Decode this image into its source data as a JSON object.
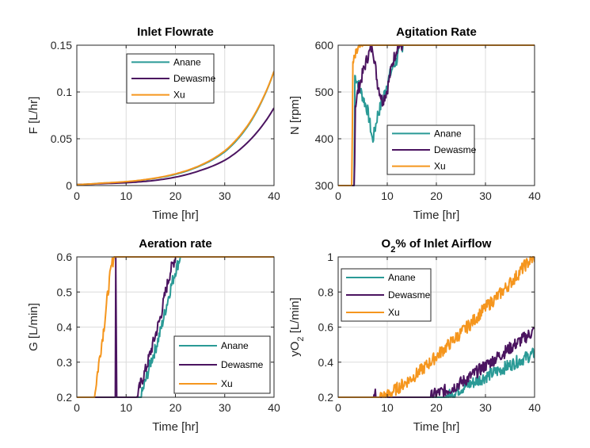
{
  "colors": {
    "Anane": "#2a9a96",
    "Dewasme": "#4b1460",
    "Xu": "#f5961e"
  },
  "chart_data": [
    {
      "type": "line",
      "title": "Inlet Flowrate",
      "title_parts": [
        "Inlet Flowrate"
      ],
      "xlabel": "Time [hr]",
      "ylabel": "F [L/hr]",
      "ylabel_parts": [
        "F [L/hr]"
      ],
      "xlim": [
        0,
        40
      ],
      "ylim": [
        0,
        0.15
      ],
      "xticks": [
        0,
        10,
        20,
        30,
        40
      ],
      "xtick_labels": [
        "0",
        "10",
        "20",
        "30",
        "40"
      ],
      "yticks": [
        0,
        0.05,
        0.1,
        0.15
      ],
      "ytick_labels": [
        "0",
        "0.05",
        "0.1",
        "0.15"
      ],
      "grid": true,
      "legend_position": "top-center",
      "series": [
        {
          "name": "Anane",
          "x": [
            0,
            5,
            10,
            15,
            20,
            25,
            30,
            35,
            40
          ],
          "y": [
            0.001,
            0.0025,
            0.004,
            0.007,
            0.012,
            0.021,
            0.036,
            0.066,
            0.122
          ]
        },
        {
          "name": "Dewasme",
          "x": [
            0,
            5,
            10,
            15,
            20,
            25,
            30,
            35,
            40
          ],
          "y": [
            0.001,
            0.002,
            0.003,
            0.005,
            0.009,
            0.016,
            0.027,
            0.048,
            0.083
          ]
        },
        {
          "name": "Xu",
          "x": [
            0,
            5,
            10,
            15,
            20,
            25,
            30,
            35,
            40
          ],
          "y": [
            0.001,
            0.0026,
            0.0042,
            0.0072,
            0.0125,
            0.0215,
            0.037,
            0.067,
            0.122
          ]
        }
      ]
    },
    {
      "type": "line",
      "title": "Agitation Rate",
      "title_parts": [
        "Agitation Rate"
      ],
      "xlabel": "Time [hr]",
      "ylabel": "N [rpm]",
      "ylabel_parts": [
        "N [rpm]"
      ],
      "xlim": [
        0,
        40
      ],
      "ylim": [
        300,
        600
      ],
      "xticks": [
        0,
        10,
        20,
        30,
        40
      ],
      "xtick_labels": [
        "0",
        "10",
        "20",
        "30",
        "40"
      ],
      "yticks": [
        300,
        400,
        500,
        600
      ],
      "ytick_labels": [
        "300",
        "400",
        "500",
        "600"
      ],
      "grid": true,
      "legend_position": "lower-right",
      "series": [
        {
          "name": "Anane",
          "x": [
            0,
            3.3,
            3.4,
            4,
            5,
            6,
            6.5,
            7,
            7.5,
            8,
            9,
            10,
            11,
            12,
            12.5,
            13,
            13.2,
            40
          ],
          "y": [
            300,
            300,
            535,
            520,
            490,
            460,
            430,
            395,
            420,
            450,
            480,
            520,
            550,
            570,
            590,
            598,
            600,
            600
          ]
        },
        {
          "name": "Dewasme",
          "x": [
            0,
            3.3,
            3.5,
            4,
            5,
            6,
            7,
            8,
            9,
            10,
            11,
            12,
            13,
            40
          ],
          "y": [
            300,
            300,
            470,
            500,
            540,
            575,
            600,
            520,
            480,
            505,
            560,
            595,
            600,
            600
          ]
        },
        {
          "name": "Xu",
          "x": [
            0,
            2.8,
            3.0,
            4,
            5,
            40
          ],
          "y": [
            300,
            300,
            560,
            590,
            600,
            600
          ]
        }
      ]
    },
    {
      "type": "line",
      "title": "Aeration rate",
      "title_parts": [
        "Aeration rate"
      ],
      "xlabel": "Time [hr]",
      "ylabel": "G [L/min]",
      "ylabel_parts": [
        "G [L/min]"
      ],
      "xlim": [
        0,
        40
      ],
      "ylim": [
        0.2,
        0.6
      ],
      "xticks": [
        0,
        10,
        20,
        30,
        40
      ],
      "xtick_labels": [
        "0",
        "10",
        "20",
        "30",
        "40"
      ],
      "yticks": [
        0.2,
        0.3,
        0.4,
        0.5,
        0.6
      ],
      "ytick_labels": [
        "0.2",
        "0.3",
        "0.4",
        "0.5",
        "0.6"
      ],
      "grid": true,
      "legend_position": "lower-right",
      "series": [
        {
          "name": "Anane",
          "x": [
            0,
            13,
            14,
            15,
            16,
            17,
            18,
            19,
            20,
            21,
            40
          ],
          "y": [
            0.2,
            0.2,
            0.25,
            0.3,
            0.34,
            0.39,
            0.45,
            0.51,
            0.56,
            0.6,
            0.6
          ]
        },
        {
          "name": "Dewasme",
          "x": [
            0,
            7.8,
            7.9,
            8.1,
            12.2,
            13,
            14,
            15,
            16,
            17,
            18,
            19,
            20,
            40
          ],
          "y": [
            0.2,
            0.2,
            0.6,
            0.2,
            0.2,
            0.24,
            0.28,
            0.33,
            0.38,
            0.43,
            0.5,
            0.56,
            0.6,
            0.6
          ]
        },
        {
          "name": "Xu",
          "x": [
            0,
            3.6,
            4,
            4.5,
            5,
            5.5,
            6,
            6.5,
            7,
            7.5,
            8,
            40
          ],
          "y": [
            0.2,
            0.2,
            0.25,
            0.3,
            0.35,
            0.4,
            0.46,
            0.52,
            0.57,
            0.6,
            0.6,
            0.6
          ]
        }
      ]
    },
    {
      "type": "line",
      "title": "O2% of Inlet Airflow",
      "title_parts": [
        "O",
        "2",
        "% of Inlet Airflow"
      ],
      "xlabel": "Time [hr]",
      "ylabel": "yO2 [L/min]",
      "ylabel_parts": [
        "yO",
        "2",
        " [L/min]"
      ],
      "xlim": [
        0,
        40
      ],
      "ylim": [
        0.2,
        1
      ],
      "xticks": [
        0,
        10,
        20,
        30,
        40
      ],
      "xtick_labels": [
        "0",
        "10",
        "20",
        "30",
        "40"
      ],
      "yticks": [
        0.2,
        0.4,
        0.6,
        0.8,
        1
      ],
      "ytick_labels": [
        "0.2",
        "0.4",
        "0.6",
        "0.8",
        "1"
      ],
      "grid": true,
      "legend_position": "top-left",
      "series": [
        {
          "name": "Anane",
          "x": [
            0,
            22,
            25,
            28,
            31,
            34,
            37,
            40
          ],
          "y": [
            0.2,
            0.2,
            0.25,
            0.29,
            0.33,
            0.37,
            0.41,
            0.45
          ]
        },
        {
          "name": "Dewasme",
          "x": [
            0,
            7.3,
            7.5,
            7.8,
            18.5,
            20,
            23,
            26,
            29,
            32,
            35,
            38,
            40
          ],
          "y": [
            0.2,
            0.2,
            0.23,
            0.2,
            0.2,
            0.22,
            0.25,
            0.3,
            0.36,
            0.42,
            0.48,
            0.54,
            0.58
          ]
        },
        {
          "name": "Xu",
          "x": [
            0,
            8.5,
            10,
            12,
            15,
            18,
            21,
            24,
            27,
            30,
            33,
            36,
            38,
            40
          ],
          "y": [
            0.2,
            0.2,
            0.21,
            0.25,
            0.31,
            0.38,
            0.46,
            0.54,
            0.62,
            0.71,
            0.79,
            0.88,
            0.95,
            1
          ]
        }
      ]
    }
  ]
}
